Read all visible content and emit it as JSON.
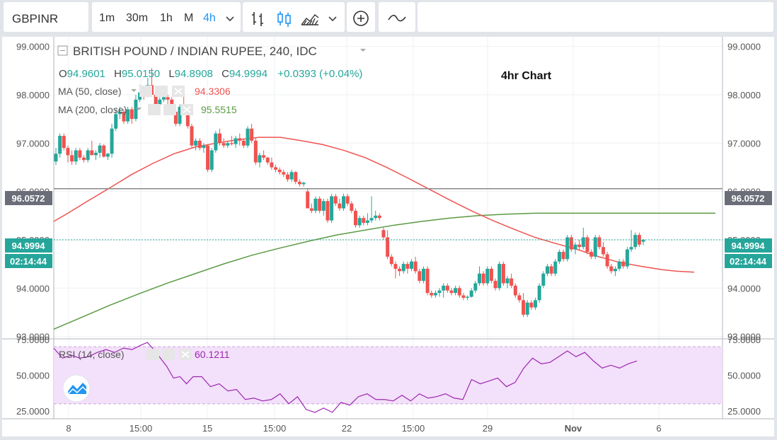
{
  "toolbar": {
    "symbol": "GBPINR",
    "intervals": [
      "1m",
      "30m",
      "1h",
      "M",
      "4h"
    ],
    "active_interval": "4h",
    "icons": [
      "chevron-down-icon",
      "bar-chart-icon",
      "candle-chart-icon",
      "area-chart-icon",
      "chevron-down-icon",
      "add-circle-icon",
      "line-chart-icon"
    ]
  },
  "legend": {
    "title": "BRITISH POUND / INDIAN RUPEE, 240, IDC",
    "o_label": "O",
    "o_value": "94.9601",
    "h_label": "H",
    "h_value": "95.0150",
    "l_label": "L",
    "l_value": "94.8908",
    "c_label": "C",
    "c_value": "94.9994",
    "change": "+0.0393 (+0.04%)",
    "annotation": "4hr Chart",
    "ma50_label": "MA (50, close)",
    "ma50_value": "94.3306",
    "ma200_label": "MA (200, close)",
    "ma200_value": "95.5515",
    "rsi_label": "RSI (14, close)",
    "rsi_value": "60.1211"
  },
  "badges": {
    "line_price": "96.0572",
    "current_price": "94.9994",
    "countdown": "02:14:44"
  },
  "colors": {
    "up": "#26a69a",
    "down": "#ef5350",
    "ma50": "#ef5350",
    "ma200": "#5b9a43",
    "rsi": "#9c27b0",
    "rsi_band": "#f3e0fa",
    "hline": "#888888",
    "price_line": "#26a69a",
    "active_interval": "#2196f3"
  },
  "chart_data": {
    "type": "candlestick",
    "title": "BRITISH POUND / INDIAN RUPEE, 240, IDC",
    "price_ticks": [
      "93.0000",
      "94.0000",
      "95.0000",
      "96.0000",
      "97.0000",
      "98.0000",
      "99.0000"
    ],
    "ylim": [
      92.95,
      99.2
    ],
    "x_ticks": [
      "8",
      "15:00",
      "15",
      "15:00",
      "22",
      "15:00",
      "29",
      "Nov",
      "6"
    ],
    "horizontal_line": 96.0572,
    "last_close": 94.9994,
    "candles": [
      [
        96.62,
        96.9,
        96.55,
        96.78
      ],
      [
        96.78,
        97.2,
        96.7,
        97.15
      ],
      [
        97.15,
        97.2,
        96.85,
        96.9
      ],
      [
        96.9,
        96.95,
        96.6,
        96.75
      ],
      [
        96.75,
        96.85,
        96.55,
        96.62
      ],
      [
        96.62,
        96.9,
        96.55,
        96.85
      ],
      [
        96.85,
        96.9,
        96.65,
        96.7
      ],
      [
        96.7,
        96.75,
        96.6,
        96.65
      ],
      [
        96.65,
        96.9,
        96.6,
        96.85
      ],
      [
        96.85,
        97.05,
        96.75,
        96.75
      ],
      [
        96.75,
        96.85,
        96.65,
        96.8
      ],
      [
        96.8,
        97.0,
        96.7,
        96.95
      ],
      [
        96.95,
        96.98,
        96.7,
        96.72
      ],
      [
        96.72,
        96.8,
        96.65,
        96.78
      ],
      [
        96.78,
        97.4,
        96.7,
        97.3
      ],
      [
        97.3,
        97.7,
        97.25,
        97.6
      ],
      [
        97.6,
        97.75,
        97.5,
        97.65
      ],
      [
        97.65,
        97.7,
        97.4,
        97.45
      ],
      [
        97.45,
        97.75,
        97.4,
        97.7
      ],
      [
        97.7,
        97.75,
        97.4,
        97.5
      ],
      [
        97.5,
        98.0,
        97.45,
        97.9
      ],
      [
        97.9,
        98.2,
        97.85,
        98.05
      ],
      [
        98.05,
        98.15,
        97.9,
        98.0
      ],
      [
        98.0,
        98.35,
        97.95,
        98.2
      ],
      [
        98.2,
        98.55,
        98.0,
        98.0
      ],
      [
        98.0,
        98.1,
        97.75,
        97.8
      ],
      [
        97.8,
        97.95,
        97.6,
        97.9
      ],
      [
        97.9,
        98.05,
        97.85,
        97.95
      ],
      [
        97.95,
        98.0,
        97.75,
        97.9
      ],
      [
        97.9,
        97.95,
        97.6,
        97.65
      ],
      [
        97.65,
        97.8,
        97.35,
        97.4
      ],
      [
        97.4,
        97.8,
        97.35,
        97.75
      ],
      [
        97.75,
        98.0,
        97.6,
        97.65
      ],
      [
        97.65,
        97.7,
        97.3,
        97.35
      ],
      [
        97.35,
        97.4,
        96.9,
        96.95
      ],
      [
        96.95,
        97.1,
        96.85,
        97.05
      ],
      [
        97.05,
        97.1,
        96.85,
        96.9
      ],
      [
        96.9,
        97.0,
        96.8,
        96.95
      ],
      [
        96.95,
        96.97,
        96.4,
        96.45
      ],
      [
        96.45,
        96.9,
        96.4,
        96.85
      ],
      [
        96.85,
        97.25,
        96.8,
        97.2
      ],
      [
        97.2,
        97.3,
        96.95,
        97.0
      ],
      [
        97.0,
        97.1,
        96.9,
        96.95
      ],
      [
        96.95,
        97.05,
        96.9,
        97.0
      ],
      [
        97.0,
        97.15,
        96.95,
        96.98
      ],
      [
        96.98,
        97.15,
        96.9,
        97.1
      ],
      [
        97.1,
        97.2,
        96.95,
        97.05
      ],
      [
        97.05,
        97.1,
        96.9,
        96.95
      ],
      [
        96.95,
        97.35,
        96.9,
        97.3
      ],
      [
        97.3,
        97.4,
        97.0,
        97.05
      ],
      [
        97.05,
        97.1,
        96.55,
        96.6
      ],
      [
        96.6,
        96.8,
        96.5,
        96.75
      ],
      [
        96.75,
        96.85,
        96.65,
        96.7
      ],
      [
        96.7,
        96.72,
        96.55,
        96.6
      ],
      [
        96.6,
        96.7,
        96.45,
        96.5
      ],
      [
        96.5,
        96.55,
        96.4,
        96.45
      ],
      [
        96.45,
        96.5,
        96.35,
        96.4
      ],
      [
        96.4,
        96.45,
        96.3,
        96.35
      ],
      [
        96.35,
        96.4,
        96.2,
        96.25
      ],
      [
        96.25,
        96.45,
        96.2,
        96.4
      ],
      [
        96.4,
        96.42,
        96.15,
        96.2
      ],
      [
        96.2,
        96.25,
        96.1,
        96.15
      ],
      [
        96.15,
        96.2,
        96.1,
        96.18
      ],
      [
        96.0,
        96.05,
        95.65,
        95.65
      ],
      [
        95.65,
        95.75,
        95.55,
        95.6
      ],
      [
        95.6,
        95.9,
        95.55,
        95.85
      ],
      [
        95.85,
        95.9,
        95.55,
        95.6
      ],
      [
        95.6,
        95.85,
        95.5,
        95.8
      ],
      [
        95.8,
        95.85,
        95.35,
        95.4
      ],
      [
        95.4,
        95.95,
        95.35,
        95.9
      ],
      [
        95.9,
        95.95,
        95.7,
        95.75
      ],
      [
        95.75,
        95.85,
        95.6,
        95.65
      ],
      [
        95.65,
        95.95,
        95.6,
        95.9
      ],
      [
        95.9,
        95.95,
        95.7,
        95.75
      ],
      [
        95.75,
        95.8,
        95.55,
        95.6
      ],
      [
        95.6,
        95.65,
        95.25,
        95.3
      ],
      [
        95.3,
        95.5,
        95.25,
        95.45
      ],
      [
        95.45,
        95.5,
        95.3,
        95.35
      ],
      [
        95.35,
        95.55,
        95.3,
        95.4
      ],
      [
        95.4,
        95.9,
        95.35,
        95.45
      ],
      [
        95.45,
        95.6,
        95.4,
        95.5
      ],
      [
        95.5,
        95.55,
        95.4,
        95.45
      ],
      [
        95.2,
        95.25,
        95.0,
        95.05
      ],
      [
        95.05,
        95.2,
        94.6,
        94.65
      ],
      [
        94.65,
        94.7,
        94.45,
        94.5
      ],
      [
        94.5,
        94.55,
        94.2,
        94.4
      ],
      [
        94.4,
        94.45,
        94.25,
        94.35
      ],
      [
        94.35,
        94.55,
        94.3,
        94.5
      ],
      [
        94.5,
        94.55,
        94.3,
        94.4
      ],
      [
        94.4,
        94.6,
        94.35,
        94.55
      ],
      [
        94.55,
        94.65,
        94.3,
        94.35
      ],
      [
        94.35,
        94.4,
        94.1,
        94.15
      ],
      [
        94.15,
        94.45,
        94.1,
        94.4
      ],
      [
        94.4,
        94.45,
        93.85,
        93.9
      ],
      [
        93.9,
        93.95,
        93.8,
        93.85
      ],
      [
        93.85,
        93.95,
        93.8,
        93.9
      ],
      [
        93.9,
        94.0,
        93.82,
        93.95
      ],
      [
        93.95,
        94.1,
        93.8,
        94.05
      ],
      [
        94.05,
        94.1,
        93.9,
        93.95
      ],
      [
        93.95,
        94.0,
        93.85,
        93.9
      ],
      [
        93.9,
        94.05,
        93.85,
        94.0
      ],
      [
        94.0,
        94.05,
        93.8,
        93.85
      ],
      [
        93.85,
        93.9,
        93.75,
        93.8
      ],
      [
        93.8,
        93.85,
        93.75,
        93.82
      ],
      [
        93.82,
        94.0,
        93.8,
        93.95
      ],
      [
        93.95,
        94.15,
        93.9,
        94.1
      ],
      [
        94.1,
        94.45,
        94.05,
        94.3
      ],
      [
        94.3,
        94.35,
        94.05,
        94.1
      ],
      [
        94.1,
        94.45,
        94.05,
        94.4
      ],
      [
        94.4,
        94.45,
        94.1,
        94.15
      ],
      [
        94.15,
        94.2,
        93.95,
        94.0
      ],
      [
        94.0,
        94.55,
        93.95,
        94.5
      ],
      [
        94.5,
        94.55,
        94.05,
        94.1
      ],
      [
        94.1,
        94.25,
        94.0,
        94.2
      ],
      [
        94.2,
        94.3,
        94.0,
        94.05
      ],
      [
        94.05,
        94.1,
        93.8,
        93.85
      ],
      [
        93.85,
        93.9,
        93.7,
        93.75
      ],
      [
        93.75,
        93.9,
        93.4,
        93.45
      ],
      [
        93.45,
        93.75,
        93.4,
        93.7
      ],
      [
        93.7,
        93.75,
        93.55,
        93.6
      ],
      [
        93.6,
        93.8,
        93.55,
        93.75
      ],
      [
        93.75,
        94.1,
        93.7,
        94.05
      ],
      [
        94.05,
        94.35,
        94.0,
        94.3
      ],
      [
        94.3,
        94.5,
        94.25,
        94.45
      ],
      [
        94.45,
        94.5,
        94.25,
        94.3
      ],
      [
        94.3,
        94.6,
        94.25,
        94.55
      ],
      [
        94.55,
        94.8,
        94.5,
        94.75
      ],
      [
        94.75,
        94.8,
        94.55,
        94.6
      ],
      [
        94.6,
        95.1,
        94.55,
        95.05
      ],
      [
        95.05,
        95.1,
        94.75,
        94.8
      ],
      [
        94.8,
        94.95,
        94.7,
        94.9
      ],
      [
        94.9,
        95.0,
        94.8,
        94.85
      ],
      [
        94.85,
        95.25,
        94.8,
        95.05
      ],
      [
        95.05,
        95.1,
        94.7,
        94.75
      ],
      [
        94.75,
        94.8,
        94.6,
        94.65
      ],
      [
        94.65,
        95.1,
        94.6,
        95.05
      ],
      [
        95.05,
        95.1,
        94.8,
        94.85
      ],
      [
        94.85,
        94.95,
        94.65,
        94.7
      ],
      [
        94.7,
        94.75,
        94.4,
        94.45
      ],
      [
        94.45,
        94.5,
        94.3,
        94.35
      ],
      [
        94.35,
        94.45,
        94.25,
        94.4
      ],
      [
        94.4,
        94.6,
        94.35,
        94.55
      ],
      [
        94.55,
        94.6,
        94.4,
        94.45
      ],
      [
        94.45,
        94.85,
        94.4,
        94.8
      ],
      [
        94.8,
        95.2,
        94.75,
        94.85
      ],
      [
        94.85,
        95.15,
        94.8,
        95.1
      ],
      [
        95.1,
        95.15,
        94.85,
        94.9
      ],
      [
        94.96,
        95.02,
        94.89,
        95.0
      ]
    ],
    "ma50": [
      [
        0,
        95.38
      ],
      [
        20,
        95.55
      ],
      [
        50,
        95.82
      ],
      [
        80,
        96.08
      ],
      [
        110,
        96.35
      ],
      [
        140,
        96.58
      ],
      [
        170,
        96.78
      ],
      [
        200,
        96.92
      ],
      [
        230,
        97.0
      ],
      [
        260,
        97.07
      ],
      [
        290,
        97.12
      ],
      [
        320,
        97.12
      ],
      [
        350,
        97.05
      ],
      [
        380,
        96.97
      ],
      [
        410,
        96.85
      ],
      [
        440,
        96.7
      ],
      [
        470,
        96.5
      ],
      [
        500,
        96.28
      ],
      [
        530,
        96.05
      ],
      [
        560,
        95.82
      ],
      [
        590,
        95.6
      ],
      [
        620,
        95.4
      ],
      [
        650,
        95.22
      ],
      [
        680,
        95.05
      ],
      [
        710,
        94.92
      ],
      [
        740,
        94.8
      ],
      [
        770,
        94.65
      ],
      [
        800,
        94.53
      ],
      [
        830,
        94.45
      ],
      [
        860,
        94.38
      ],
      [
        880,
        94.35
      ],
      [
        905,
        94.33
      ]
    ],
    "ma200": [
      [
        0,
        93.15
      ],
      [
        40,
        93.4
      ],
      [
        80,
        93.65
      ],
      [
        120,
        93.88
      ],
      [
        160,
        94.1
      ],
      [
        200,
        94.3
      ],
      [
        240,
        94.5
      ],
      [
        280,
        94.68
      ],
      [
        320,
        94.83
      ],
      [
        360,
        94.97
      ],
      [
        400,
        95.1
      ],
      [
        440,
        95.2
      ],
      [
        480,
        95.3
      ],
      [
        520,
        95.38
      ],
      [
        560,
        95.45
      ],
      [
        600,
        95.5
      ],
      [
        640,
        95.53
      ],
      [
        680,
        95.55
      ],
      [
        720,
        95.55
      ],
      [
        760,
        95.55
      ],
      [
        800,
        95.55
      ],
      [
        840,
        95.55
      ],
      [
        880,
        95.55
      ],
      [
        935,
        95.55
      ]
    ],
    "rsi": {
      "ylim": [
        20,
        75
      ],
      "ticks": [
        "25.0000",
        "50.0000",
        "75.0000"
      ],
      "band": [
        30,
        70
      ],
      "values": [
        [
          0,
          69
        ],
        [
          20,
          62
        ],
        [
          40,
          64
        ],
        [
          60,
          62
        ],
        [
          80,
          63
        ],
        [
          100,
          66
        ],
        [
          120,
          68
        ],
        [
          140,
          66
        ],
        [
          160,
          69
        ],
        [
          180,
          68
        ],
        [
          200,
          71
        ],
        [
          215,
          73
        ],
        [
          230,
          68
        ],
        [
          245,
          62
        ],
        [
          260,
          56
        ],
        [
          275,
          48
        ],
        [
          290,
          49
        ],
        [
          305,
          44
        ],
        [
          320,
          49
        ],
        [
          340,
          49
        ],
        [
          360,
          42
        ],
        [
          380,
          44
        ],
        [
          400,
          39
        ],
        [
          420,
          40
        ],
        [
          440,
          33
        ],
        [
          460,
          34
        ],
        [
          480,
          32
        ],
        [
          500,
          33
        ],
        [
          520,
          37
        ],
        [
          540,
          30
        ],
        [
          560,
          35
        ],
        [
          580,
          26
        ],
        [
          600,
          24
        ],
        [
          620,
          27
        ],
        [
          640,
          24
        ],
        [
          660,
          31
        ],
        [
          680,
          29
        ],
        [
          700,
          35
        ],
        [
          720,
          37
        ],
        [
          740,
          33
        ],
        [
          760,
          33
        ],
        [
          780,
          32
        ],
        [
          800,
          36
        ],
        [
          820,
          32
        ],
        [
          840,
          37
        ],
        [
          860,
          34
        ],
        [
          880,
          35
        ],
        [
          900,
          37
        ],
        [
          920,
          34
        ],
        [
          940,
          33
        ],
        [
          960,
          47
        ],
        [
          980,
          44
        ],
        [
          1000,
          46
        ],
        [
          1020,
          48
        ],
        [
          1040,
          42
        ],
        [
          1060,
          45
        ],
        [
          1080,
          55
        ],
        [
          1100,
          62
        ],
        [
          1120,
          58
        ],
        [
          1140,
          59
        ],
        [
          1160,
          63
        ],
        [
          1180,
          67
        ],
        [
          1200,
          63
        ],
        [
          1220,
          66
        ],
        [
          1240,
          60
        ],
        [
          1260,
          55
        ],
        [
          1280,
          57
        ],
        [
          1300,
          55
        ],
        [
          1320,
          58
        ],
        [
          1340,
          60
        ]
      ]
    }
  }
}
